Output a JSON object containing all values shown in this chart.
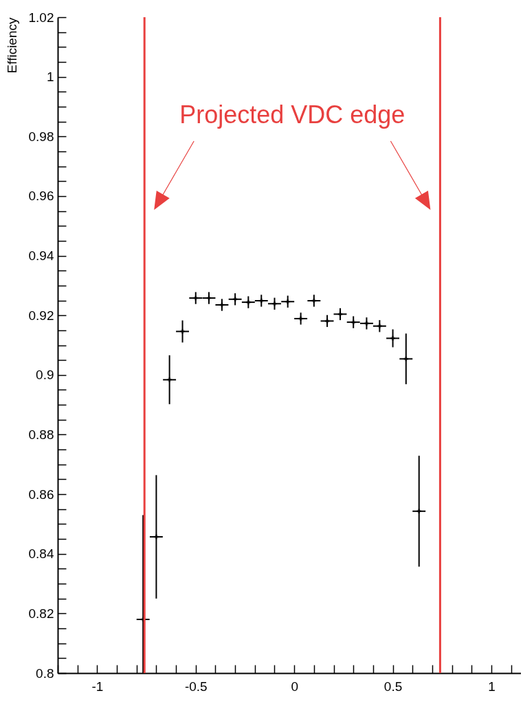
{
  "chart_data": {
    "type": "scatter",
    "ylabel": "Efficiency",
    "x": [
      -0.767,
      -0.7,
      -0.633,
      -0.567,
      -0.5,
      -0.433,
      -0.367,
      -0.3,
      -0.233,
      -0.167,
      -0.1,
      -0.033,
      0.033,
      0.1,
      0.167,
      0.233,
      0.3,
      0.367,
      0.433,
      0.5,
      0.567,
      0.633
    ],
    "series": [
      {
        "color": "#000000",
        "values": [
          0.818,
          0.8457,
          0.8984,
          0.9146,
          0.9258,
          0.9258,
          0.9235,
          0.9254,
          0.9244,
          0.9249,
          0.9239,
          0.9246,
          0.9189,
          0.9249,
          0.9181,
          0.9204,
          0.9177,
          0.9173,
          0.9164,
          0.9123,
          0.9054,
          0.8543
        ],
        "errors": [
          [
            0.8,
            0.853
          ],
          0.0207,
          0.0082,
          0.0037,
          0.002,
          0.002,
          0.002,
          0.002,
          0.002,
          0.002,
          0.002,
          0.002,
          0.002,
          0.002,
          0.002,
          0.002,
          0.002,
          0.002,
          0.002,
          0.003,
          0.0085,
          0.0186
        ],
        "xerrors": [
          0.033,
          0.033,
          0.033,
          0.033,
          0.033,
          0.033,
          0.033,
          0.033,
          0.033,
          0.033,
          0.033,
          0.033,
          0.033,
          0.033,
          0.033,
          0.033,
          0.033,
          0.033,
          0.033,
          0.033,
          0.033,
          0.033
        ]
      }
    ],
    "marker": "cross",
    "grid": false,
    "legend": false,
    "xlim": [
      -1.2,
      1.15
    ],
    "ylim": [
      0.8,
      1.02
    ],
    "xticks": [
      {
        "value": -1.2,
        "label": null
      },
      {
        "value": -1.1,
        "label": null
      },
      -1,
      {
        "value": -0.9,
        "label": null
      },
      {
        "value": -0.8,
        "label": null
      },
      {
        "value": -0.7,
        "label": null
      },
      {
        "value": -0.6,
        "label": null
      },
      -0.5,
      {
        "value": -0.4,
        "label": null
      },
      {
        "value": -0.3,
        "label": null
      },
      {
        "value": -0.2,
        "label": null
      },
      {
        "value": -0.1,
        "label": null
      },
      0,
      {
        "value": 0.1,
        "label": null
      },
      {
        "value": 0.2,
        "label": null
      },
      {
        "value": 0.3,
        "label": null
      },
      {
        "value": 0.4,
        "label": null
      },
      0.5,
      {
        "value": 0.6,
        "label": null
      },
      {
        "value": 0.7,
        "label": null
      },
      {
        "value": 0.8,
        "label": null
      },
      {
        "value": 0.9,
        "label": null
      },
      1,
      {
        "value": 1.1,
        "label": null
      }
    ],
    "yticks": [
      0.8,
      {
        "value": 0.805,
        "label": null
      },
      {
        "value": 0.81,
        "label": null
      },
      {
        "value": 0.815,
        "label": null
      },
      0.82,
      {
        "value": 0.825,
        "label": null
      },
      {
        "value": 0.83,
        "label": null
      },
      {
        "value": 0.835,
        "label": null
      },
      0.84,
      {
        "value": 0.845,
        "label": null
      },
      {
        "value": 0.85,
        "label": null
      },
      {
        "value": 0.855,
        "label": null
      },
      0.86,
      {
        "value": 0.865,
        "label": null
      },
      {
        "value": 0.87,
        "label": null
      },
      {
        "value": 0.875,
        "label": null
      },
      0.88,
      {
        "value": 0.885,
        "label": null
      },
      {
        "value": 0.89,
        "label": null
      },
      {
        "value": 0.895,
        "label": null
      },
      0.9,
      {
        "value": 0.905,
        "label": null
      },
      {
        "value": 0.91,
        "label": null
      },
      {
        "value": 0.915,
        "label": null
      },
      0.92,
      {
        "value": 0.925,
        "label": null
      },
      {
        "value": 0.93,
        "label": null
      },
      {
        "value": 0.935,
        "label": null
      },
      0.94,
      {
        "value": 0.945,
        "label": null
      },
      {
        "value": 0.95,
        "label": null
      },
      {
        "value": 0.955,
        "label": null
      },
      0.96,
      {
        "value": 0.965,
        "label": null
      },
      {
        "value": 0.97,
        "label": null
      },
      {
        "value": 0.975,
        "label": null
      },
      0.98,
      {
        "value": 0.985,
        "label": null
      },
      {
        "value": 0.99,
        "label": null
      },
      {
        "value": 0.995,
        "label": null
      },
      1,
      {
        "value": 1.005,
        "label": null
      },
      {
        "value": 1.01,
        "label": null
      },
      {
        "value": 1.015,
        "label": null
      },
      1.02
    ],
    "ref_lines": [
      {
        "axis": "x",
        "value": -0.76,
        "color": "#e8403f"
      },
      {
        "axis": "x",
        "value": 0.74,
        "color": "#e8403f"
      }
    ],
    "annotations": [
      "Projected VDC edge"
    ]
  }
}
